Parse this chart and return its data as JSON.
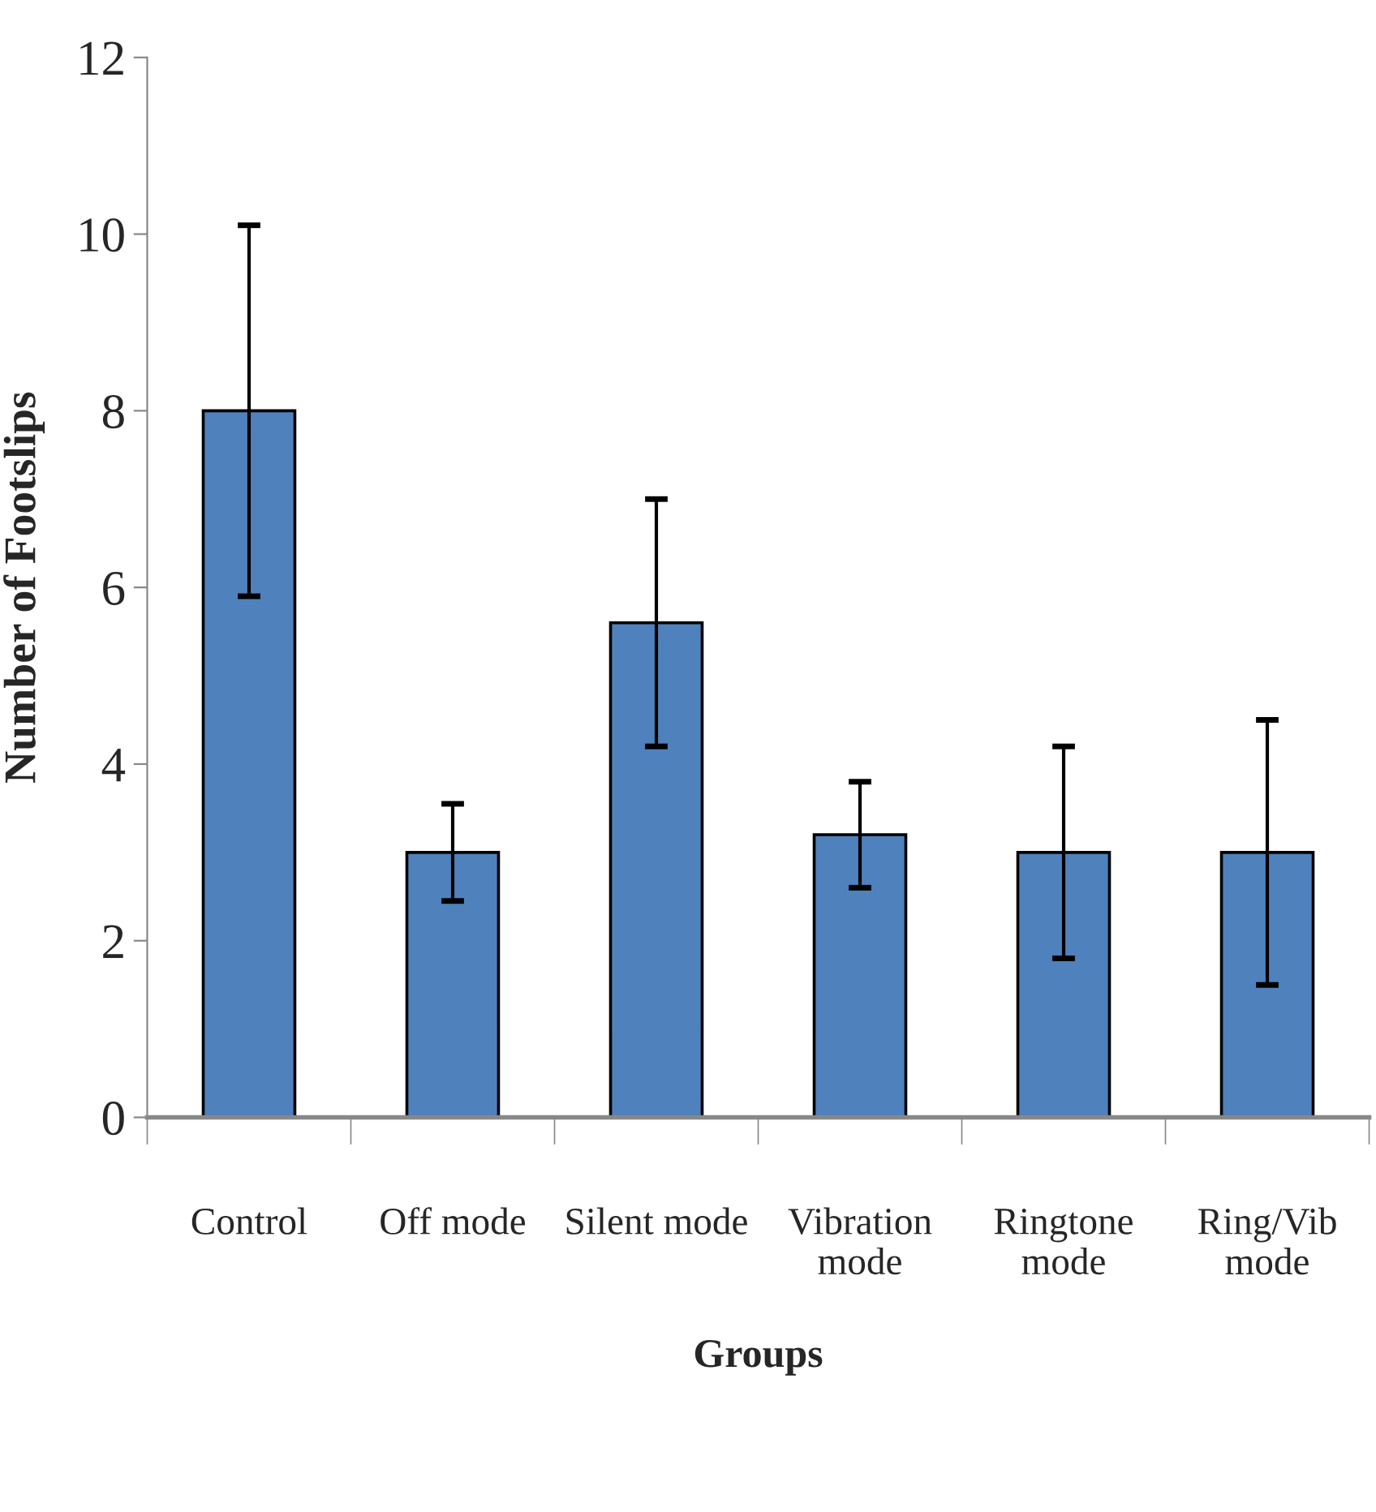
{
  "chart_data": {
    "type": "bar",
    "xlabel": "Groups",
    "ylabel": "Number of Footslips",
    "categories": [
      "Control",
      "Off mode",
      "Silent mode",
      "Vibration\nmode",
      "Ringtone\nmode",
      "Ring/Vib\nmode"
    ],
    "values": [
      8.0,
      3.0,
      5.6,
      3.2,
      3.0,
      3.0
    ],
    "errors": [
      2.1,
      0.55,
      1.4,
      0.6,
      1.2,
      1.5
    ],
    "color": "#4f81bd",
    "ylim": [
      0,
      12
    ],
    "yticks": [
      0,
      2,
      4,
      6,
      8,
      10,
      12
    ],
    "grid": false,
    "legend": false
  }
}
